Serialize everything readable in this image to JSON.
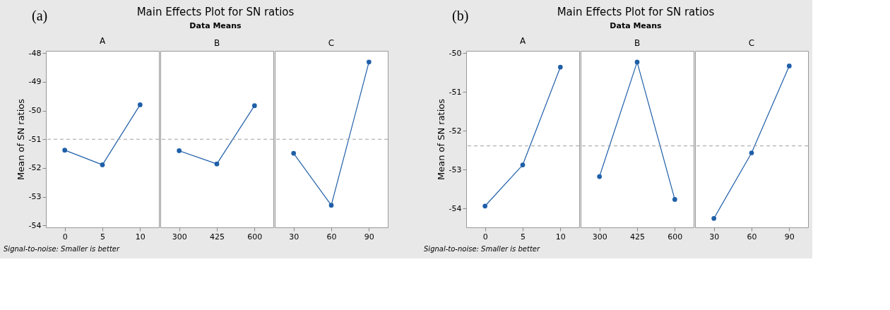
{
  "chart_data": [
    {
      "type": "line",
      "title": "A",
      "ylabel": "Mean of SN ratios",
      "annotations": [
        "(a)",
        "Main Effects Plot for SN ratios",
        "Data Means",
        "Signal-to-noise: Smaller is better"
      ],
      "categories": [
        "0",
        "5",
        "10"
      ],
      "values": [
        -51.38,
        -51.89,
        -49.8
      ],
      "color": "#1f5fa8",
      "marker": "circle",
      "ylim": [
        -54.07,
        -47.92
      ],
      "yticks": [
        -54,
        -53,
        -52,
        -51,
        -50,
        -49,
        -48
      ],
      "ref_lines": [
        {
          "axis": "y",
          "value": -51.0,
          "color": "#a0a0a0",
          "line_style": "dashed"
        }
      ]
    },
    {
      "type": "line",
      "title": "B",
      "categories": [
        "300",
        "425",
        "600"
      ],
      "values": [
        -51.4,
        -51.86,
        -49.83
      ],
      "color": "#1f5fa8",
      "marker": "circle",
      "ylim": [
        -54.07,
        -47.92
      ],
      "yticks": [
        -54,
        -53,
        -52,
        -51,
        -50,
        -49,
        -48
      ],
      "tick_labels": "x",
      "ref_lines": [
        {
          "axis": "y",
          "value": -51.0,
          "color": "#a0a0a0",
          "line_style": "dashed"
        }
      ]
    },
    {
      "type": "line",
      "title": "C",
      "categories": [
        "30",
        "60",
        "90"
      ],
      "values": [
        -51.49,
        -53.3,
        -48.31
      ],
      "color": "#1f5fa8",
      "marker": "circle",
      "ylim": [
        -54.07,
        -47.92
      ],
      "yticks": [
        -54,
        -53,
        -52,
        -51,
        -50,
        -49,
        -48
      ],
      "tick_labels": "x",
      "ref_lines": [
        {
          "axis": "y",
          "value": -51.0,
          "color": "#a0a0a0",
          "line_style": "dashed"
        }
      ]
    },
    {
      "type": "line",
      "title": "A",
      "ylabel": "Mean of SN ratios",
      "annotations": [
        "(b)",
        "Main Effects Plot for SN ratios",
        "Data Means",
        "Signal-to-noise: Smaller is better"
      ],
      "categories": [
        "0",
        "5",
        "10"
      ],
      "values": [
        -53.94,
        -52.88,
        -50.36
      ],
      "color": "#1f5fa8",
      "marker": "circle",
      "ylim": [
        -54.49,
        -49.94
      ],
      "yticks": [
        -54,
        -53,
        -52,
        -51,
        -50
      ],
      "ref_lines": [
        {
          "axis": "y",
          "value": -52.39,
          "color": "#a0a0a0",
          "line_style": "dashed"
        }
      ]
    },
    {
      "type": "line",
      "title": "B",
      "categories": [
        "300",
        "425",
        "600"
      ],
      "values": [
        -53.18,
        -50.23,
        -53.77
      ],
      "color": "#1f5fa8",
      "marker": "circle",
      "ylim": [
        -54.49,
        -49.94
      ],
      "yticks": [
        -54,
        -53,
        -52,
        -51,
        -50
      ],
      "tick_labels": "x",
      "ref_lines": [
        {
          "axis": "y",
          "value": -52.39,
          "color": "#a0a0a0",
          "line_style": "dashed"
        }
      ]
    },
    {
      "type": "line",
      "title": "C",
      "categories": [
        "30",
        "60",
        "90"
      ],
      "values": [
        -54.26,
        -52.57,
        -50.33
      ],
      "color": "#1f5fa8",
      "marker": "circle",
      "ylim": [
        -54.49,
        -49.94
      ],
      "yticks": [
        -54,
        -53,
        -52,
        -51,
        -50
      ],
      "tick_labels": "x",
      "ref_lines": [
        {
          "axis": "y",
          "value": -52.39,
          "color": "#a0a0a0",
          "line_style": "dashed"
        }
      ]
    }
  ]
}
